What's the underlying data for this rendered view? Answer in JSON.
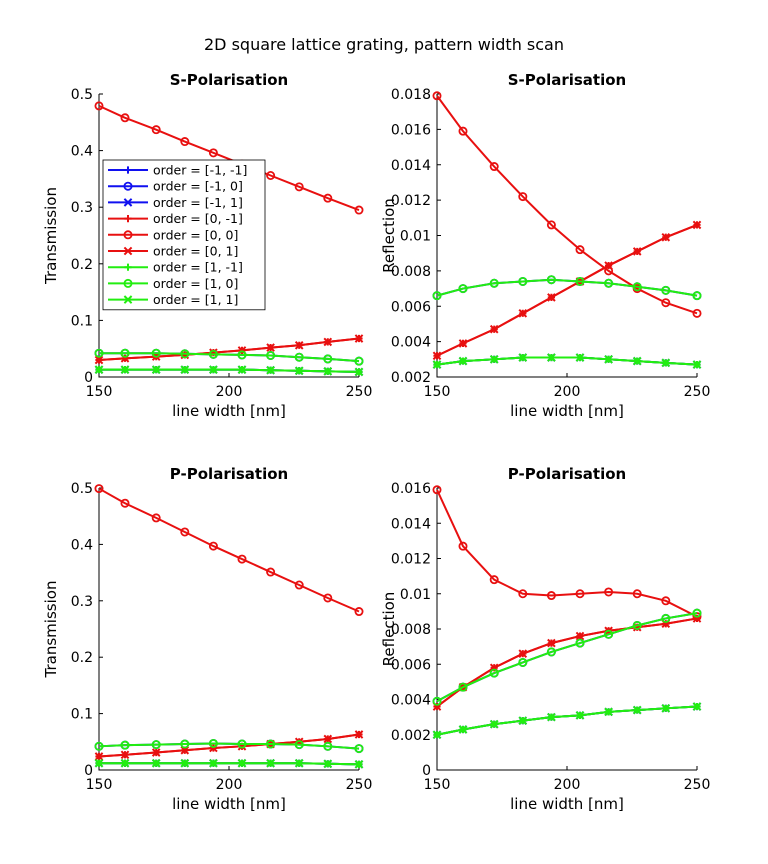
{
  "figure": {
    "title": "2D square lattice grating, pattern width scan"
  },
  "colors": {
    "minus1": "#1010f0",
    "zero": "#e81010",
    "plus1": "#22ee10"
  },
  "chart_data": [
    {
      "type": "line",
      "title": "S-Polarisation",
      "xlabel": "line width [nm]",
      "ylabel": "Transmission",
      "xlim": [
        150,
        250
      ],
      "ylim": [
        0,
        0.5
      ],
      "xticks": [
        "150",
        "200",
        "250"
      ],
      "yticks": [
        "0",
        "0.1",
        "0.2",
        "0.3",
        "0.4",
        "0.5"
      ],
      "legend_position": "upper-left",
      "x": [
        150,
        160,
        172,
        183,
        194,
        205,
        216,
        227,
        238,
        250
      ],
      "series": [
        {
          "name": "order = [-1, -1]",
          "marker": "plus",
          "color_key": "minus1",
          "values": [
            0.013,
            0.013,
            0.013,
            0.013,
            0.013,
            0.013,
            0.012,
            0.011,
            0.01,
            0.009
          ]
        },
        {
          "name": "order = [-1, 0]",
          "marker": "circle",
          "color_key": "minus1",
          "values": [
            0.042,
            0.042,
            0.042,
            0.041,
            0.04,
            0.039,
            0.038,
            0.035,
            0.032,
            0.028
          ]
        },
        {
          "name": "order = [-1, 1]",
          "marker": "x",
          "color_key": "minus1",
          "values": [
            0.013,
            0.013,
            0.013,
            0.013,
            0.013,
            0.013,
            0.012,
            0.011,
            0.01,
            0.009
          ]
        },
        {
          "name": "order = [0, -1]",
          "marker": "plus",
          "color_key": "zero",
          "values": [
            0.03,
            0.033,
            0.036,
            0.039,
            0.043,
            0.047,
            0.052,
            0.056,
            0.062,
            0.068
          ]
        },
        {
          "name": "order = [0, 0]",
          "marker": "circle",
          "color_key": "zero",
          "values": [
            0.479,
            0.458,
            0.437,
            0.416,
            0.396,
            0.376,
            0.356,
            0.336,
            0.316,
            0.295
          ]
        },
        {
          "name": "order = [0, 1]",
          "marker": "x",
          "color_key": "zero",
          "values": [
            0.03,
            0.033,
            0.036,
            0.039,
            0.043,
            0.047,
            0.052,
            0.056,
            0.062,
            0.068
          ]
        },
        {
          "name": "order = [1, -1]",
          "marker": "plus",
          "color_key": "plus1",
          "values": [
            0.013,
            0.013,
            0.013,
            0.013,
            0.013,
            0.013,
            0.012,
            0.011,
            0.01,
            0.009
          ]
        },
        {
          "name": "order = [1, 0]",
          "marker": "circle",
          "color_key": "plus1",
          "values": [
            0.042,
            0.042,
            0.042,
            0.041,
            0.04,
            0.039,
            0.038,
            0.035,
            0.032,
            0.028
          ]
        },
        {
          "name": "order = [1, 1]",
          "marker": "x",
          "color_key": "plus1",
          "values": [
            0.013,
            0.013,
            0.013,
            0.013,
            0.013,
            0.013,
            0.012,
            0.011,
            0.01,
            0.009
          ]
        }
      ]
    },
    {
      "type": "line",
      "title": "S-Polarisation",
      "xlabel": "line width [nm]",
      "ylabel": "Reflection",
      "xlim": [
        150,
        250
      ],
      "ylim": [
        0.002,
        0.018
      ],
      "xticks": [
        "150",
        "200",
        "250"
      ],
      "yticks": [
        "0.002",
        "0.004",
        "0.006",
        "0.008",
        "0.01",
        "0.012",
        "0.014",
        "0.016",
        "0.018"
      ],
      "x": [
        150,
        160,
        172,
        183,
        194,
        205,
        216,
        227,
        238,
        250
      ],
      "series": [
        {
          "name": "order = [-1, -1]",
          "marker": "plus",
          "color_key": "minus1",
          "values": [
            0.0027,
            0.0029,
            0.003,
            0.0031,
            0.0031,
            0.0031,
            0.003,
            0.0029,
            0.0028,
            0.0027
          ]
        },
        {
          "name": "order = [-1, 0]",
          "marker": "circle",
          "color_key": "minus1",
          "values": [
            0.0066,
            0.007,
            0.0073,
            0.0074,
            0.0075,
            0.0074,
            0.0073,
            0.0071,
            0.0069,
            0.0066
          ]
        },
        {
          "name": "order = [-1, 1]",
          "marker": "x",
          "color_key": "minus1",
          "values": [
            0.0027,
            0.0029,
            0.003,
            0.0031,
            0.0031,
            0.0031,
            0.003,
            0.0029,
            0.0028,
            0.0027
          ]
        },
        {
          "name": "order = [0, -1]",
          "marker": "plus",
          "color_key": "zero",
          "values": [
            0.0032,
            0.0039,
            0.0047,
            0.0056,
            0.0065,
            0.0074,
            0.0083,
            0.0091,
            0.0099,
            0.0106
          ]
        },
        {
          "name": "order = [0, 0]",
          "marker": "circle",
          "color_key": "zero",
          "values": [
            0.0179,
            0.0159,
            0.0139,
            0.0122,
            0.0106,
            0.0092,
            0.008,
            0.007,
            0.0062,
            0.0056
          ]
        },
        {
          "name": "order = [0, 1]",
          "marker": "x",
          "color_key": "zero",
          "values": [
            0.0032,
            0.0039,
            0.0047,
            0.0056,
            0.0065,
            0.0074,
            0.0083,
            0.0091,
            0.0099,
            0.0106
          ]
        },
        {
          "name": "order = [1, -1]",
          "marker": "plus",
          "color_key": "plus1",
          "values": [
            0.0027,
            0.0029,
            0.003,
            0.0031,
            0.0031,
            0.0031,
            0.003,
            0.0029,
            0.0028,
            0.0027
          ]
        },
        {
          "name": "order = [1, 0]",
          "marker": "circle",
          "color_key": "plus1",
          "values": [
            0.0066,
            0.007,
            0.0073,
            0.0074,
            0.0075,
            0.0074,
            0.0073,
            0.0071,
            0.0069,
            0.0066
          ]
        },
        {
          "name": "order = [1, 1]",
          "marker": "x",
          "color_key": "plus1",
          "values": [
            0.0027,
            0.0029,
            0.003,
            0.0031,
            0.0031,
            0.0031,
            0.003,
            0.0029,
            0.0028,
            0.0027
          ]
        }
      ]
    },
    {
      "type": "line",
      "title": "P-Polarisation",
      "xlabel": "line width [nm]",
      "ylabel": "Transmission",
      "xlim": [
        150,
        250
      ],
      "ylim": [
        0,
        0.5
      ],
      "xticks": [
        "150",
        "200",
        "250"
      ],
      "yticks": [
        "0",
        "0.1",
        "0.2",
        "0.3",
        "0.4",
        "0.5"
      ],
      "x": [
        150,
        160,
        172,
        183,
        194,
        205,
        216,
        227,
        238,
        250
      ],
      "series": [
        {
          "name": "order = [-1, -1]",
          "marker": "plus",
          "color_key": "minus1",
          "values": [
            0.012,
            0.012,
            0.012,
            0.012,
            0.012,
            0.012,
            0.012,
            0.012,
            0.011,
            0.01
          ]
        },
        {
          "name": "order = [-1, 0]",
          "marker": "circle",
          "color_key": "minus1",
          "values": [
            0.042,
            0.044,
            0.045,
            0.046,
            0.047,
            0.046,
            0.046,
            0.045,
            0.042,
            0.038
          ]
        },
        {
          "name": "order = [-1, 1]",
          "marker": "x",
          "color_key": "minus1",
          "values": [
            0.012,
            0.012,
            0.012,
            0.012,
            0.012,
            0.012,
            0.012,
            0.012,
            0.011,
            0.01
          ]
        },
        {
          "name": "order = [0, -1]",
          "marker": "plus",
          "color_key": "zero",
          "values": [
            0.024,
            0.027,
            0.031,
            0.035,
            0.039,
            0.042,
            0.046,
            0.05,
            0.055,
            0.063
          ]
        },
        {
          "name": "order = [0, 0]",
          "marker": "circle",
          "color_key": "zero",
          "values": [
            0.499,
            0.473,
            0.447,
            0.422,
            0.397,
            0.374,
            0.351,
            0.328,
            0.305,
            0.281
          ]
        },
        {
          "name": "order = [0, 1]",
          "marker": "x",
          "color_key": "zero",
          "values": [
            0.024,
            0.027,
            0.031,
            0.035,
            0.039,
            0.042,
            0.046,
            0.05,
            0.055,
            0.063
          ]
        },
        {
          "name": "order = [1, -1]",
          "marker": "plus",
          "color_key": "plus1",
          "values": [
            0.012,
            0.012,
            0.012,
            0.012,
            0.012,
            0.012,
            0.012,
            0.012,
            0.011,
            0.01
          ]
        },
        {
          "name": "order = [1, 0]",
          "marker": "circle",
          "color_key": "plus1",
          "values": [
            0.042,
            0.044,
            0.045,
            0.046,
            0.047,
            0.046,
            0.046,
            0.045,
            0.042,
            0.038
          ]
        },
        {
          "name": "order = [1, 1]",
          "marker": "x",
          "color_key": "plus1",
          "values": [
            0.012,
            0.012,
            0.012,
            0.012,
            0.012,
            0.012,
            0.012,
            0.012,
            0.011,
            0.01
          ]
        }
      ]
    },
    {
      "type": "line",
      "title": "P-Polarisation",
      "xlabel": "line width [nm]",
      "ylabel": "Reflection",
      "xlim": [
        150,
        250
      ],
      "ylim": [
        0,
        0.016
      ],
      "xticks": [
        "150",
        "200",
        "250"
      ],
      "yticks": [
        "0",
        "0.002",
        "0.004",
        "0.006",
        "0.008",
        "0.01",
        "0.012",
        "0.014",
        "0.016"
      ],
      "x": [
        150,
        160,
        172,
        183,
        194,
        205,
        216,
        227,
        238,
        250
      ],
      "series": [
        {
          "name": "order = [-1, -1]",
          "marker": "plus",
          "color_key": "minus1",
          "values": [
            0.002,
            0.0023,
            0.0026,
            0.0028,
            0.003,
            0.0031,
            0.0033,
            0.0034,
            0.0035,
            0.0036
          ]
        },
        {
          "name": "order = [-1, 0]",
          "marker": "circle",
          "color_key": "minus1",
          "values": [
            0.0039,
            0.0047,
            0.0055,
            0.0061,
            0.0067,
            0.0072,
            0.0077,
            0.0082,
            0.0086,
            0.0089
          ]
        },
        {
          "name": "order = [-1, 1]",
          "marker": "x",
          "color_key": "minus1",
          "values": [
            0.002,
            0.0023,
            0.0026,
            0.0028,
            0.003,
            0.0031,
            0.0033,
            0.0034,
            0.0035,
            0.0036
          ]
        },
        {
          "name": "order = [0, -1]",
          "marker": "plus",
          "color_key": "zero",
          "values": [
            0.0036,
            0.0047,
            0.0058,
            0.0066,
            0.0072,
            0.0076,
            0.0079,
            0.0081,
            0.0083,
            0.0086
          ]
        },
        {
          "name": "order = [0, 0]",
          "marker": "circle",
          "color_key": "zero",
          "values": [
            0.0159,
            0.0127,
            0.0108,
            0.01,
            0.0099,
            0.01,
            0.0101,
            0.01,
            0.0096,
            0.0087
          ]
        },
        {
          "name": "order = [0, 1]",
          "marker": "x",
          "color_key": "zero",
          "values": [
            0.0036,
            0.0047,
            0.0058,
            0.0066,
            0.0072,
            0.0076,
            0.0079,
            0.0081,
            0.0083,
            0.0086
          ]
        },
        {
          "name": "order = [1, -1]",
          "marker": "plus",
          "color_key": "plus1",
          "values": [
            0.002,
            0.0023,
            0.0026,
            0.0028,
            0.003,
            0.0031,
            0.0033,
            0.0034,
            0.0035,
            0.0036
          ]
        },
        {
          "name": "order = [1, 0]",
          "marker": "circle",
          "color_key": "plus1",
          "values": [
            0.0039,
            0.0047,
            0.0055,
            0.0061,
            0.0067,
            0.0072,
            0.0077,
            0.0082,
            0.0086,
            0.0089
          ]
        },
        {
          "name": "order = [1, 1]",
          "marker": "x",
          "color_key": "plus1",
          "values": [
            0.002,
            0.0023,
            0.0026,
            0.0028,
            0.003,
            0.0031,
            0.0033,
            0.0034,
            0.0035,
            0.0036
          ]
        }
      ]
    }
  ]
}
